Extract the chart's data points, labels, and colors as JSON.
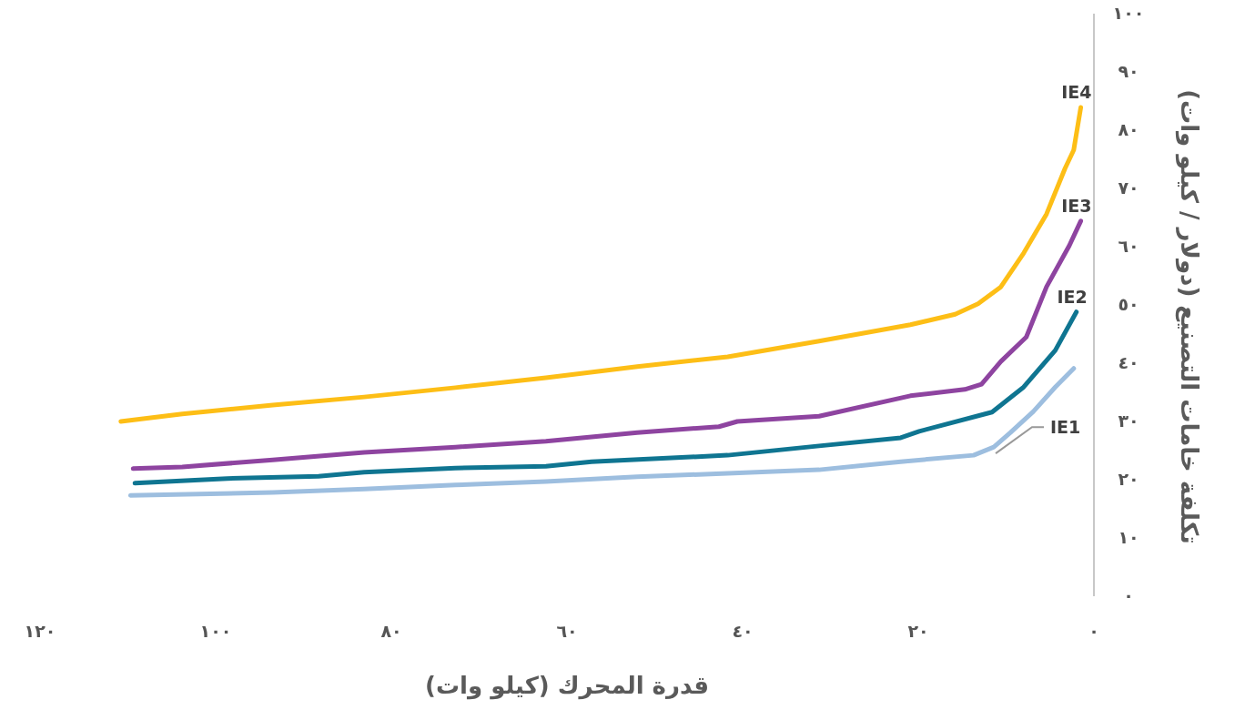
{
  "chart_data": {
    "type": "line",
    "xlabel": "قدرة المحرك (كيلو وات)",
    "ylabel": "تكلفة خامات التصنيع (دولار / كيلو وات)",
    "xlim": [
      120,
      0
    ],
    "ylim": [
      0,
      100
    ],
    "xticks": [
      {
        "value": 120,
        "label": "١٢٠"
      },
      {
        "value": 100,
        "label": "١٠٠"
      },
      {
        "value": 80,
        "label": "٨٠"
      },
      {
        "value": 60,
        "label": "٦٠"
      },
      {
        "value": 40,
        "label": "٤٠"
      },
      {
        "value": 20,
        "label": "٢٠"
      },
      {
        "value": 0,
        "label": "٠"
      }
    ],
    "yticks": [
      {
        "value": 0,
        "label": "٠"
      },
      {
        "value": 10,
        "label": "١٠"
      },
      {
        "value": 20,
        "label": "٢٠"
      },
      {
        "value": 30,
        "label": "٣٠"
      },
      {
        "value": 40,
        "label": "٤٠"
      },
      {
        "value": 50,
        "label": "٥٠"
      },
      {
        "value": 60,
        "label": "٦٠"
      },
      {
        "value": 70,
        "label": "٧٠"
      },
      {
        "value": 80,
        "label": "٨٠"
      },
      {
        "value": 90,
        "label": "٩٠"
      },
      {
        "value": 100,
        "label": "١٠٠"
      }
    ],
    "grid": false,
    "marker": "none",
    "series": [
      {
        "name": "IE4",
        "color": "#fdbe16",
        "x": [
          110.8,
          103.8,
          93.5,
          83.1,
          72.7,
          62.4,
          52.0,
          41.7,
          31.3,
          20.9,
          15.8,
          13.2,
          10.6,
          8.0,
          5.4,
          3.3,
          2.3,
          1.5
        ],
        "values": [
          30.0,
          31.3,
          32.8,
          34.2,
          35.8,
          37.5,
          39.4,
          41.1,
          43.8,
          46.6,
          48.4,
          50.2,
          53.1,
          58.9,
          65.6,
          73.4,
          76.6,
          83.9
        ]
      },
      {
        "name": "IE3",
        "color": "#8e44a0",
        "x": [
          109.4,
          103.8,
          93.5,
          83.1,
          72.7,
          62.4,
          52.0,
          42.7,
          40.6,
          31.3,
          20.9,
          14.7,
          12.8,
          10.6,
          7.7,
          5.4,
          2.8,
          1.5
        ],
        "values": [
          21.9,
          22.2,
          23.4,
          24.7,
          25.6,
          26.6,
          28.1,
          29.1,
          30.0,
          30.9,
          34.4,
          35.5,
          36.4,
          40.3,
          44.5,
          53.1,
          60.2,
          64.4
        ]
      },
      {
        "name": "IE2",
        "color": "#0f7591",
        "x": [
          109.2,
          98.7,
          88.3,
          83.1,
          72.7,
          62.4,
          57.2,
          41.7,
          31.3,
          22.0,
          19.9,
          11.6,
          8.0,
          4.4,
          2.0
        ],
        "values": [
          19.4,
          20.2,
          20.6,
          21.3,
          22.0,
          22.3,
          23.1,
          24.2,
          25.8,
          27.2,
          28.3,
          31.6,
          35.9,
          42.2,
          48.8
        ]
      },
      {
        "name": "IE1",
        "color": "#9dbedf",
        "x": [
          109.7,
          93.5,
          83.1,
          72.7,
          62.4,
          52.0,
          41.7,
          31.3,
          22.0,
          13.7,
          11.4,
          9.5,
          6.9,
          4.4,
          2.3
        ],
        "values": [
          17.3,
          17.8,
          18.4,
          19.1,
          19.7,
          20.5,
          21.1,
          21.7,
          23.1,
          24.2,
          25.6,
          28.1,
          31.7,
          35.9,
          39.1
        ]
      }
    ]
  }
}
